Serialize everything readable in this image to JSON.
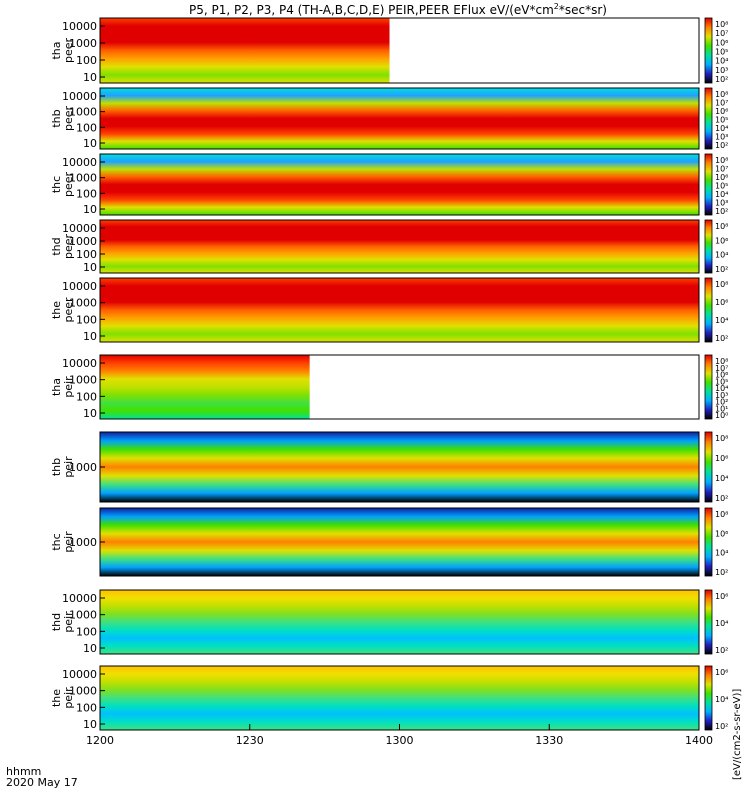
{
  "chart_data": {
    "type": "heatmap",
    "title": "P5, P1, P2, P3, P4 (TH-A,B,C,D,E) PEIR,PEER EFlux eV/(eV*cm2*sec*sr)",
    "title_parts": {
      "main": "P5, P1, P2, P3, P4 (TH-A,B,C,D,E) PEIR,PEER EFlux eV/(eV*cm",
      "sup": "2",
      "tail": "*sec*sr)"
    },
    "x_axis": {
      "label_line1": "hhmm",
      "label_line2": "2020 May 17",
      "ticks": [
        "1200",
        "1230",
        "1300",
        "1330",
        "1400"
      ],
      "range": [
        0,
        120
      ]
    },
    "colorbar_label": "[eV/(cm2-s-sr-eV)]",
    "colormap": [
      "#000000",
      "#2020c0",
      "#00b0ff",
      "#00e0a0",
      "#40e000",
      "#e0e000",
      "#ff8000",
      "#e00000"
    ],
    "panels": [
      {
        "id": "tha_peer",
        "ylabel": [
          "tha",
          "peer"
        ],
        "yticks": [
          "10000",
          "1000",
          "100",
          "10"
        ],
        "data_end_minute": 58,
        "cbar_ticks": [
          "10⁸",
          "10⁷",
          "10⁶",
          "10⁵",
          "10⁴",
          "10³",
          "10²"
        ]
      },
      {
        "id": "thb_peer",
        "ylabel": [
          "thb",
          "peer"
        ],
        "yticks": [
          "10000",
          "1000",
          "100",
          "10"
        ],
        "data_end_minute": 120,
        "cbar_ticks": [
          "10⁸",
          "10⁷",
          "10⁶",
          "10⁵",
          "10⁴",
          "10³",
          "10²"
        ]
      },
      {
        "id": "thc_peer",
        "ylabel": [
          "thc",
          "peer"
        ],
        "yticks": [
          "10000",
          "1000",
          "100",
          "10"
        ],
        "data_end_minute": 120,
        "cbar_ticks": [
          "10⁸",
          "10⁷",
          "10⁶",
          "10⁵",
          "10⁴",
          "10³",
          "10²"
        ]
      },
      {
        "id": "thd_peer",
        "ylabel": [
          "thd",
          "peer"
        ],
        "yticks": [
          "10000",
          "1000",
          "100",
          "10"
        ],
        "data_end_minute": 120,
        "cbar_ticks": [
          "10⁸",
          "10⁶",
          "10⁴",
          "10²"
        ]
      },
      {
        "id": "the_peer",
        "ylabel": [
          "the",
          "peer"
        ],
        "yticks": [
          "10000",
          "1000",
          "100",
          "10"
        ],
        "data_end_minute": 120,
        "cbar_ticks": [
          "10⁸",
          "10⁶",
          "10⁴",
          "10²"
        ]
      },
      {
        "id": "tha_peir",
        "ylabel": [
          "tha",
          "peir"
        ],
        "yticks": [
          "10000",
          "1000",
          "100",
          "10"
        ],
        "data_end_minute": 42,
        "cbar_ticks": [
          "10⁸",
          "10⁷",
          "10⁶",
          "10⁵",
          "10⁴",
          "10³",
          "10²",
          "10¹",
          "10⁰"
        ]
      },
      {
        "id": "thb_peir",
        "ylabel": [
          "thb",
          "peir"
        ],
        "yticks": [
          "1000"
        ],
        "data_end_minute": 120,
        "cbar_ticks": [
          "10⁸",
          "10⁶",
          "10⁴",
          "10²"
        ]
      },
      {
        "id": "thc_peir",
        "ylabel": [
          "thc",
          "peir"
        ],
        "yticks": [
          "1000"
        ],
        "data_end_minute": 120,
        "cbar_ticks": [
          "10⁸",
          "10⁶",
          "10⁴",
          "10²"
        ]
      },
      {
        "id": "thd_peir",
        "ylabel": [
          "thd",
          "peir"
        ],
        "yticks": [
          "10000",
          "1000",
          "100",
          "10"
        ],
        "data_end_minute": 120,
        "cbar_ticks": [
          "10⁶",
          "10⁴",
          "10²"
        ]
      },
      {
        "id": "the_peir",
        "ylabel": [
          "the",
          "peir"
        ],
        "yticks": [
          "10000",
          "1000",
          "100",
          "10"
        ],
        "data_end_minute": 120,
        "cbar_ticks": [
          "10⁶",
          "10⁴",
          "10²"
        ]
      }
    ]
  }
}
